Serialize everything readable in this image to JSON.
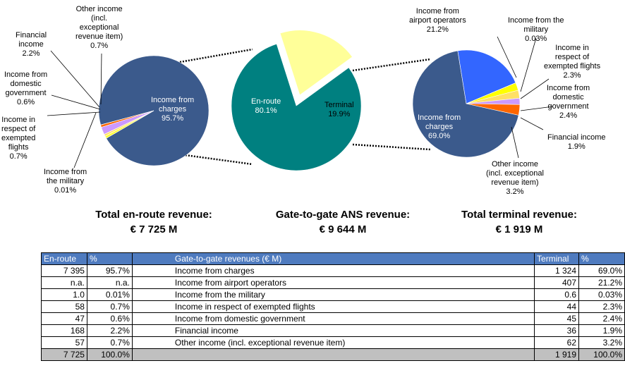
{
  "chart_data": [
    {
      "type": "pie",
      "name": "en-route",
      "slices": [
        {
          "label": "Income from\ncharges\n95.7%",
          "value": 95.7,
          "color": "#3b5a8c"
        },
        {
          "label": "Income in\nrespect of\nexempted\nflights\n0.7%",
          "value": 0.7,
          "color": "#ffff33"
        },
        {
          "label": "Income from\ndomestic\ngovernment\n0.6%",
          "value": 0.6,
          "color": "#ffe066"
        },
        {
          "label": "Financial\nincome\n2.2%",
          "value": 2.2,
          "color": "#cc99ff"
        },
        {
          "label": "Other income\n(incl.\nexceptional\nrevenue item)\n0.7%",
          "value": 0.7,
          "color": "#ff6600"
        },
        {
          "label": "Income from\nthe military\n0.01%",
          "value": 0.01,
          "color": "#999999"
        }
      ]
    },
    {
      "type": "pie",
      "name": "gate-to-gate",
      "slices": [
        {
          "label": "En-route\n80.1%",
          "value": 80.1,
          "color": "#008080"
        },
        {
          "label": "Terminal\n19.9%",
          "value": 19.9,
          "color": "#ffff99"
        }
      ]
    },
    {
      "type": "pie",
      "name": "terminal",
      "slices": [
        {
          "label": "Income from\ncharges\n69.0%",
          "value": 69.0,
          "color": "#3b5a8c"
        },
        {
          "label": "Income from\nairport operators\n21.2%",
          "value": 21.2,
          "color": "#3366ff"
        },
        {
          "label": "Income from the\nmilitary\n0.03%",
          "value": 0.03,
          "color": "#999999"
        },
        {
          "label": "Income in\nrespect of\nexempted flights\n2.3%",
          "value": 2.3,
          "color": "#ffff00"
        },
        {
          "label": "Income from\ndomestic\ngovernment\n2.4%",
          "value": 2.4,
          "color": "#ffe066"
        },
        {
          "label": "Financial income\n1.9%",
          "value": 1.9,
          "color": "#cc99ff"
        },
        {
          "label": "Other income\n(incl. exceptional\nrevenue item)\n3.2%",
          "value": 3.2,
          "color": "#ff6600"
        }
      ]
    }
  ],
  "totals": {
    "enroute": {
      "label": "Total en-route revenue:",
      "value": "€ 7 725  M"
    },
    "g2g": {
      "label": "Gate-to-gate ANS revenue:",
      "value": "€ 9 644  M"
    },
    "terminal": {
      "label": "Total terminal revenue:",
      "value": "€ 1 919  M"
    }
  },
  "table": {
    "headers": [
      "En-route",
      "%",
      "Gate-to-gate revenues (€ M)",
      "Terminal",
      "%"
    ],
    "rows": [
      [
        "7 395",
        "95.7%",
        "Income from charges",
        "1 324",
        "69.0%"
      ],
      [
        "n.a.",
        "n.a.",
        "Income from airport operators",
        "407",
        "21.2%"
      ],
      [
        "1.0",
        "0.01%",
        "Income from the military",
        "0.6",
        "0.03%"
      ],
      [
        "58",
        "0.7%",
        "Income in respect of exempted flights",
        "44",
        "2.3%"
      ],
      [
        "47",
        "0.6%",
        "Income from domestic government",
        "45",
        "2.4%"
      ],
      [
        "168",
        "2.2%",
        "Financial income",
        "36",
        "1.9%"
      ],
      [
        "57",
        "0.7%",
        "Other income (incl. exceptional revenue item)",
        "62",
        "3.2%"
      ]
    ],
    "total_row": [
      "7 725",
      "100.0%",
      "",
      "1 919",
      "100.0%"
    ]
  }
}
